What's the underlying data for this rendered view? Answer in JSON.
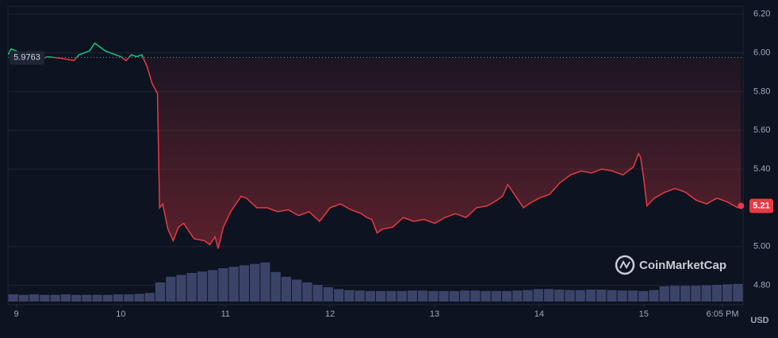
{
  "chart_data": {
    "type": "line",
    "series": [
      {
        "color": "#ea3943",
        "color_up": "#16c784",
        "x": [
          8.92,
          8.95,
          9.0,
          9.1,
          9.2,
          9.3,
          9.45,
          9.55,
          9.6,
          9.7,
          9.75,
          9.8,
          9.85,
          9.9,
          10.0,
          10.05,
          10.1,
          10.15,
          10.2,
          10.25,
          10.3,
          10.35,
          10.37,
          10.4,
          10.45,
          10.5,
          10.55,
          10.6,
          10.7,
          10.8,
          10.85,
          10.9,
          10.93,
          10.98,
          11.05,
          11.15,
          11.2,
          11.3,
          11.4,
          11.5,
          11.6,
          11.7,
          11.8,
          11.9,
          12.0,
          12.1,
          12.2,
          12.3,
          12.35,
          12.4,
          12.45,
          12.5,
          12.6,
          12.7,
          12.8,
          12.9,
          13.0,
          13.1,
          13.2,
          13.3,
          13.4,
          13.5,
          13.6,
          13.65,
          13.7,
          13.8,
          13.85,
          13.9,
          14.0,
          14.1,
          14.2,
          14.3,
          14.4,
          14.5,
          14.6,
          14.7,
          14.8,
          14.9,
          14.95,
          14.97,
          15.0,
          15.03,
          15.1,
          15.2,
          15.3,
          15.4,
          15.5,
          15.6,
          15.7,
          15.8,
          15.9,
          15.93
        ],
        "values": [
          5.99,
          6.02,
          6.01,
          5.98,
          5.96,
          5.98,
          5.97,
          5.96,
          5.99,
          6.01,
          6.05,
          6.03,
          6.01,
          6.0,
          5.98,
          5.96,
          5.99,
          5.98,
          5.99,
          5.93,
          5.84,
          5.79,
          5.2,
          5.22,
          5.09,
          5.03,
          5.1,
          5.12,
          5.04,
          5.03,
          5.01,
          5.05,
          4.99,
          5.1,
          5.18,
          5.26,
          5.25,
          5.2,
          5.2,
          5.18,
          5.19,
          5.16,
          5.18,
          5.13,
          5.2,
          5.22,
          5.19,
          5.17,
          5.15,
          5.14,
          5.07,
          5.09,
          5.1,
          5.15,
          5.13,
          5.14,
          5.12,
          5.15,
          5.17,
          5.15,
          5.2,
          5.21,
          5.24,
          5.26,
          5.32,
          5.24,
          5.2,
          5.22,
          5.25,
          5.27,
          5.33,
          5.37,
          5.39,
          5.38,
          5.4,
          5.39,
          5.37,
          5.41,
          5.48,
          5.46,
          5.35,
          5.21,
          5.25,
          5.28,
          5.3,
          5.28,
          5.24,
          5.22,
          5.25,
          5.23,
          5.2,
          5.21
        ]
      },
      {
        "type": "bar",
        "axis": "y2",
        "color": "#3b4468",
        "values": [
          15,
          14,
          15,
          14,
          14,
          15,
          14,
          14,
          14,
          14,
          15,
          15,
          16,
          18,
          40,
          52,
          56,
          60,
          63,
          66,
          70,
          73,
          76,
          79,
          82,
          62,
          52,
          46,
          40,
          35,
          30,
          26,
          24,
          23,
          22,
          22,
          22,
          22,
          23,
          23,
          22,
          22,
          22,
          23,
          23,
          22,
          22,
          22,
          23,
          24,
          26,
          26,
          25,
          24,
          24,
          25,
          25,
          24,
          23,
          23,
          22,
          24,
          32,
          33,
          33,
          33,
          34,
          35,
          36,
          37
        ]
      }
    ],
    "reference": 5.9763,
    "xlim": [
      8.92,
      15.95
    ],
    "xticks": [
      9,
      10,
      11,
      12,
      13,
      14,
      15,
      {
        "value": 15.753,
        "label": "6:05 PM"
      }
    ],
    "ylim": [
      4.7,
      6.24
    ],
    "yticks": [
      {
        "value": 6.2,
        "label": "6.20"
      },
      {
        "value": 6.0,
        "label": "6.00"
      },
      {
        "value": 5.8,
        "label": "5.80"
      },
      {
        "value": 5.6,
        "label": "5.60"
      },
      {
        "value": 5.4,
        "label": "5.40"
      },
      {
        "value": 5.0,
        "label": "5.00"
      },
      {
        "value": 4.8,
        "label": "4.80"
      }
    ],
    "y2lim": [
      0,
      100
    ],
    "grid": true,
    "y_unit": "USD",
    "watermark": "CoinMarketCap"
  }
}
